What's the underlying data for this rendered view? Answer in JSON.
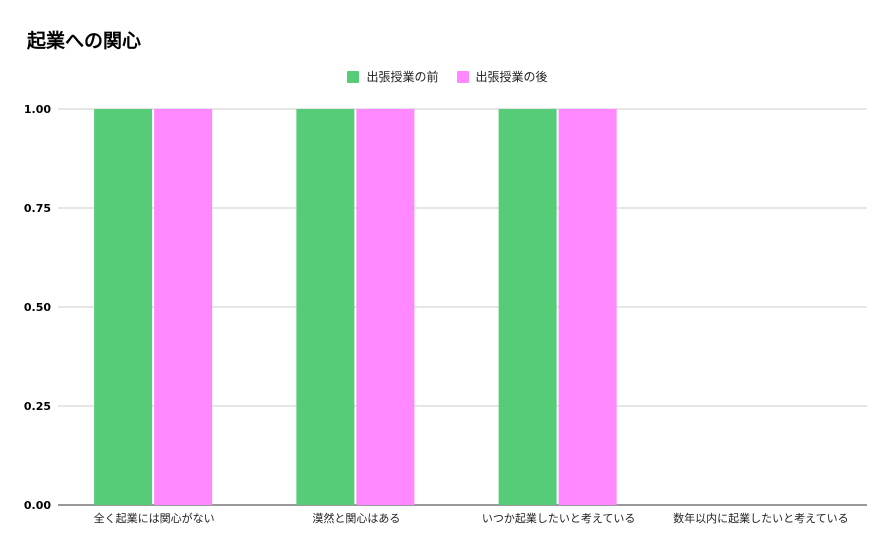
{
  "chart_data": {
    "type": "bar",
    "title": "起業への関心",
    "categories": [
      "全く起業には関心がない",
      "漠然と関心はある",
      "いつか起業したいと考えている",
      "数年以内に起業したいと考えている"
    ],
    "series": [
      {
        "name": "出張授業の前",
        "values": [
          1.0,
          1.0,
          1.0,
          0
        ],
        "color": "#57cc78"
      },
      {
        "name": "出張授業の後",
        "values": [
          1.0,
          1.0,
          1.0,
          0
        ],
        "color": "#ff87ff"
      }
    ],
    "y_ticks": [
      "0.00",
      "0.25",
      "0.50",
      "0.75",
      "1.00"
    ],
    "ylim": [
      0,
      1
    ],
    "xlabel": "",
    "ylabel": "",
    "grid": true,
    "legend_position": "top-center"
  }
}
